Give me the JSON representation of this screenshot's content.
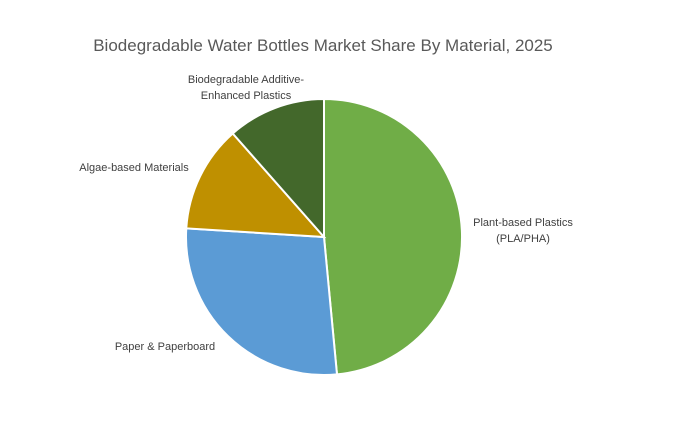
{
  "chart_data": {
    "type": "pie",
    "title": "Biodegradable Water Bottles Market Share By Material, 2025",
    "slices": [
      {
        "label_lines": [
          "Plant-based Plastics",
          "(PLA/PHA)"
        ],
        "value": 48.5,
        "color": "#70ad47"
      },
      {
        "label_lines": [
          "Paper & Paperboard"
        ],
        "value": 27.5,
        "color": "#5b9bd5"
      },
      {
        "label_lines": [
          "Algae-based Materials"
        ],
        "value": 12.5,
        "color": "#bf9000"
      },
      {
        "label_lines": [
          "Biodegradable Additive-",
          "Enhanced Plastics"
        ],
        "value": 11.5,
        "color": "#43682b"
      }
    ],
    "start_angle_deg": 0,
    "direction": "clockwise",
    "legend": "none",
    "data_labels": "category names outside slices"
  }
}
